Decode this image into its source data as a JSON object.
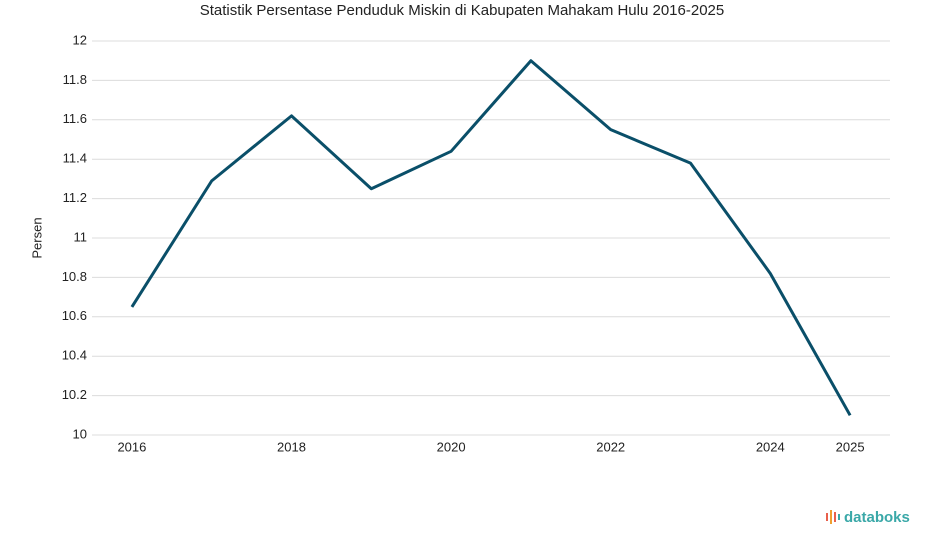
{
  "chart_data": {
    "type": "line",
    "title": "Statistik Persentase Penduduk Miskin di Kabupaten Mahakam Hulu 2016-2025",
    "y_label": "Persen",
    "x": [
      2016,
      2017,
      2018,
      2019,
      2020,
      2021,
      2022,
      2023,
      2024,
      2025
    ],
    "series": [
      {
        "name": "Persen",
        "color": "#0a4f69",
        "values": [
          10.65,
          11.29,
          11.62,
          11.25,
          11.44,
          11.9,
          11.55,
          11.38,
          10.82,
          10.1
        ]
      }
    ],
    "xlim": [
      2015.5,
      2025.5
    ],
    "xticks": [
      2016,
      2018,
      2020,
      2022,
      2024,
      2025
    ],
    "ylim": [
      10,
      12
    ],
    "yticks": [
      10,
      10.2,
      10.4,
      10.6,
      10.8,
      11,
      11.2,
      11.4,
      11.6,
      11.8,
      12
    ],
    "grid": true,
    "source": "databoks"
  }
}
